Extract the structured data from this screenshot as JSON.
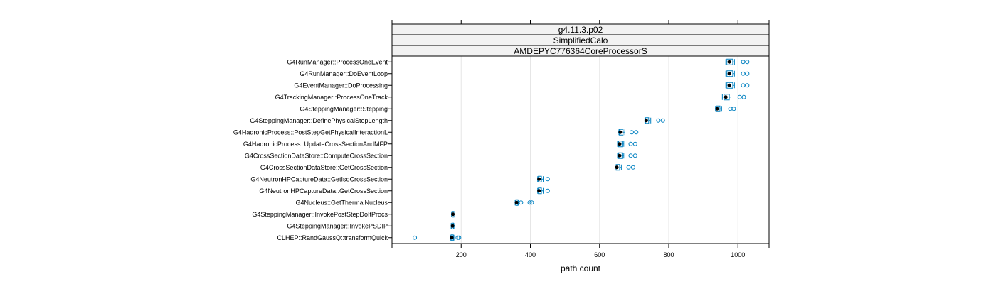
{
  "chart_data": {
    "type": "boxplot",
    "strips": [
      "g4.11.3.p02",
      "SimplifiedCalo",
      "AMDEPYC776364CoreProcessorS"
    ],
    "xlabel": "path count",
    "xlim": [
      0,
      1090
    ],
    "xticks": [
      200,
      400,
      600,
      800,
      1000
    ],
    "grid": "vertical",
    "colors": {
      "median": "#000000",
      "box": "#0080c0",
      "outlier": "#0080c0",
      "grid": "#e6e6e6",
      "strip": "#f2f2f2"
    },
    "categories": [
      {
        "label": "G4RunManager::ProcessOneEvent",
        "median": 975,
        "q1": 968,
        "q3": 985,
        "wlo": 965,
        "whi": 990,
        "outliers": [
          1015,
          1027
        ]
      },
      {
        "label": "G4RunManager::DoEventLoop",
        "median": 975,
        "q1": 968,
        "q3": 985,
        "wlo": 965,
        "whi": 990,
        "outliers": [
          1015,
          1027
        ]
      },
      {
        "label": "G4EventManager::DoProcessing",
        "median": 975,
        "q1": 968,
        "q3": 985,
        "wlo": 965,
        "whi": 990,
        "outliers": [
          1015,
          1027
        ]
      },
      {
        "label": "G4TrackingManager::ProcessOneTrack",
        "median": 965,
        "q1": 960,
        "q3": 975,
        "wlo": 955,
        "whi": 980,
        "outliers": [
          1005,
          1017
        ]
      },
      {
        "label": "G4SteppingManager::Stepping",
        "median": 940,
        "q1": 937,
        "q3": 948,
        "wlo": 935,
        "whi": 953,
        "outliers": [
          978,
          988
        ]
      },
      {
        "label": "G4SteppingManager::DefinePhysicalStepLength",
        "median": 735,
        "q1": 733,
        "q3": 742,
        "wlo": 731,
        "whi": 748,
        "outliers": [
          770,
          783
        ]
      },
      {
        "label": "G4HadronicProcess::PostStepGetPhysicalInteractionL",
        "median": 660,
        "q1": 657,
        "q3": 668,
        "wlo": 654,
        "whi": 673,
        "outliers": [
          693,
          706
        ]
      },
      {
        "label": "G4HadronicProcess::UpdateCrossSectionAndMFP",
        "median": 658,
        "q1": 655,
        "q3": 665,
        "wlo": 652,
        "whi": 670,
        "outliers": [
          690,
          703
        ]
      },
      {
        "label": "G4CrossSectionDataStore::ComputeCrossSection",
        "median": 658,
        "q1": 655,
        "q3": 665,
        "wlo": 652,
        "whi": 670,
        "outliers": [
          690,
          703
        ]
      },
      {
        "label": "G4CrossSectionDataStore::GetCrossSection",
        "median": 650,
        "q1": 648,
        "q3": 658,
        "wlo": 645,
        "whi": 663,
        "outliers": [
          684,
          697
        ]
      },
      {
        "label": "G4NeutronHPCaptureData::GetIsoCrossSection",
        "median": 425,
        "q1": 423,
        "q3": 432,
        "wlo": 421,
        "whi": 437,
        "outliers": [
          450
        ]
      },
      {
        "label": "G4NeutronHPCaptureData::GetCrossSection",
        "median": 425,
        "q1": 423,
        "q3": 432,
        "wlo": 421,
        "whi": 437,
        "outliers": [
          450
        ]
      },
      {
        "label": "G4Nucleus::GetThermalNucleus",
        "median": 360,
        "q1": 358,
        "q3": 364,
        "wlo": 356,
        "whi": 366,
        "outliers": [
          373,
          398,
          404
        ]
      },
      {
        "label": "G4SteppingManager::InvokePostStepDoItProcs",
        "median": 176,
        "q1": 174,
        "q3": 179,
        "wlo": 172,
        "whi": 182,
        "outliers": []
      },
      {
        "label": "G4SteppingManager::InvokePSDIP",
        "median": 175,
        "q1": 173,
        "q3": 178,
        "wlo": 171,
        "whi": 181,
        "outliers": []
      },
      {
        "label": "CLHEP::RandGaussQ::transformQuick",
        "median": 173,
        "q1": 171,
        "q3": 177,
        "wlo": 169,
        "whi": 179,
        "outliers": [
          66,
          190,
          194
        ]
      }
    ]
  }
}
